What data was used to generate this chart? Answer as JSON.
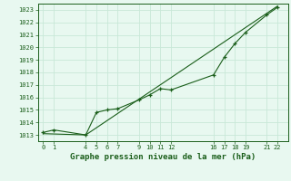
{
  "title": "Graphe pression niveau de la mer (hPa)",
  "background_color": "#e8f8f0",
  "grid_color": "#c8e8d8",
  "line_color": "#1a5e1a",
  "ylim": [
    1012.5,
    1023.5
  ],
  "xlim": [
    -0.5,
    23
  ],
  "yticks": [
    1013,
    1014,
    1015,
    1016,
    1017,
    1018,
    1019,
    1020,
    1021,
    1022,
    1023
  ],
  "xticks": [
    0,
    1,
    4,
    5,
    6,
    7,
    9,
    10,
    11,
    12,
    16,
    17,
    18,
    19,
    21,
    22
  ],
  "line1_x": [
    0,
    1,
    4,
    5,
    6,
    7,
    9,
    10,
    11,
    12,
    16,
    17,
    18,
    19,
    21,
    22
  ],
  "line1_y": [
    1013.2,
    1013.4,
    1013.0,
    1014.8,
    1015.0,
    1015.1,
    1015.8,
    1016.2,
    1016.7,
    1016.6,
    1017.8,
    1019.2,
    1020.3,
    1021.2,
    1022.6,
    1023.2
  ],
  "line2_x": [
    0,
    4,
    22
  ],
  "line2_y": [
    1013.1,
    1013.0,
    1023.3
  ],
  "title_fontsize": 6.5,
  "tick_fontsize": 5,
  "title_color": "#1a5e1a",
  "tick_color": "#1a5e1a",
  "spine_color": "#1a5e1a"
}
